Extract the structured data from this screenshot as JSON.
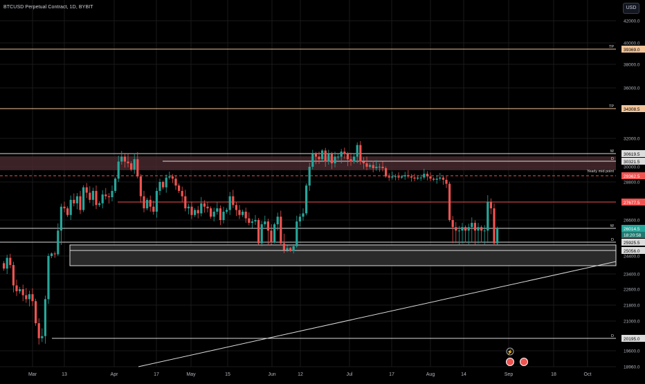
{
  "header": {
    "title": "BTCUSD Perpetual Contract, 1D, BYBIT",
    "currency_button": "USD"
  },
  "colors": {
    "up": "#26a69a",
    "down": "#ef5350",
    "grid": "#1a1a1a",
    "tp": "#f2c59a",
    "level": "#e8e8e8",
    "red_level": "#ef5350",
    "zone_top": "#4a2a30",
    "zone_bottom": "#2a2a2a"
  },
  "chart_data": {
    "type": "candlestick",
    "title": "BTCUSD Perpetual Contract, 1D, BYBIT",
    "x_ticks": [
      "Mar",
      "13",
      "Apr",
      "17",
      "May",
      "15",
      "Jun",
      "12",
      "Jul",
      "17",
      "Aug",
      "14",
      "Sep",
      "18",
      "Oct"
    ],
    "y_ticks": [
      "42000.0",
      "40000.0",
      "38000.0",
      "36000.0",
      "32000.0",
      "30000.0",
      "28800.0",
      "26600.0",
      "24400.0",
      "23400.0",
      "22600.0",
      "21800.0",
      "21000.0",
      "19600.0",
      "18960.0"
    ],
    "ylim": [
      18600,
      42800
    ],
    "levels": [
      {
        "price": 39369.0,
        "label": "39369.0",
        "tag": "TP",
        "kind": "tp"
      },
      {
        "price": 34308.5,
        "label": "34308.5",
        "tag": "TP",
        "kind": "tp"
      },
      {
        "price": 30619.5,
        "label": "30619.5",
        "tag": "W",
        "kind": "white"
      },
      {
        "price": 30321.5,
        "label": "30321.5",
        "tag": "D",
        "kind": "white"
      },
      {
        "price": 29362.5,
        "label": "29362.5",
        "tag": "",
        "kind": "dashed"
      },
      {
        "price": 27677.5,
        "label": "27677.5",
        "tag": "",
        "kind": "red"
      },
      {
        "price": 26014.5,
        "label": "26014.5",
        "tag": "W",
        "kind": "current"
      },
      {
        "price": 25925.5,
        "label": "25925.5",
        "tag": "D",
        "kind": "white"
      },
      {
        "price": 25056.0,
        "label": "25056.0",
        "tag": "",
        "kind": "white"
      },
      {
        "price": 20195.0,
        "label": "20195.0",
        "tag": "D",
        "kind": "white"
      }
    ],
    "annotations": {
      "yearly_mid": "Yearly mid point",
      "countdown": "18:20:58"
    },
    "closes": [
      23700,
      24300,
      23900,
      22800,
      22500,
      22600,
      22300,
      22100,
      22350,
      22000,
      20900,
      20200,
      20300,
      22100,
      24400,
      24700,
      24600,
      26000,
      27400,
      27300,
      26900,
      27800,
      27600,
      28000,
      27200,
      28500,
      28200,
      27800,
      28300,
      27500,
      27600,
      28100,
      28000,
      27950,
      28300,
      29100,
      30300,
      30500,
      30300,
      30200,
      29800,
      30400,
      29300,
      28000,
      27300,
      27800,
      27400,
      27100,
      28300,
      28800,
      28500,
      29200,
      29300,
      29100,
      28600,
      28300,
      28000,
      27300,
      27400,
      26900,
      27200,
      27000,
      27600,
      27400,
      27300,
      26800,
      27100,
      27300,
      26600,
      27100,
      27200,
      28000,
      27500,
      27200,
      26900,
      27100,
      26700,
      26400,
      26500,
      26600,
      25800,
      26300,
      26500,
      26000,
      25900,
      26300,
      26800,
      25800,
      25100,
      25300,
      25000,
      25500,
      26500,
      26800,
      27000,
      28600,
      30000,
      30600,
      30500,
      30400,
      30900,
      30300,
      30600,
      30200,
      30500,
      30500,
      30800,
      30600,
      30400,
      30300,
      30500,
      31400,
      30300,
      30200,
      30000,
      30100,
      29900,
      30000,
      30000,
      29900,
      29300,
      29200,
      29300,
      29300,
      29200,
      29300,
      29400,
      29300,
      29200,
      29100,
      29200,
      29200,
      29500,
      29300,
      29100,
      29000,
      29100,
      29200,
      29000,
      28700,
      26600,
      26100,
      26000,
      26000,
      26100,
      26000,
      26100,
      26400,
      26000,
      26100,
      26000,
      26000,
      27700,
      27300,
      25800,
      26014.5
    ]
  }
}
